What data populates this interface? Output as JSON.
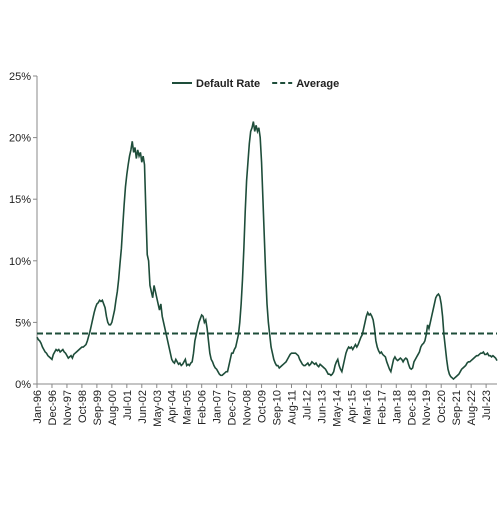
{
  "chart_data": {
    "type": "line",
    "ylim": [
      0,
      25
    ],
    "yticks": [
      {
        "value": 0,
        "label": "0%"
      },
      {
        "value": 5,
        "label": "5%"
      },
      {
        "value": 10,
        "label": "10%"
      },
      {
        "value": 15,
        "label": "15%"
      },
      {
        "value": 20,
        "label": "20%"
      },
      {
        "value": 25,
        "label": "25%"
      }
    ],
    "legend": "top",
    "categories": [
      "Jan-96",
      null,
      null,
      null,
      null,
      null,
      null,
      null,
      null,
      null,
      null,
      "Dec-96",
      null,
      null,
      null,
      null,
      null,
      null,
      null,
      null,
      null,
      null,
      "Nov-97",
      null,
      null,
      null,
      null,
      null,
      null,
      null,
      null,
      null,
      null,
      "Oct-98",
      null,
      null,
      null,
      null,
      null,
      null,
      null,
      null,
      null,
      null,
      "Sep-99",
      null,
      null,
      null,
      null,
      null,
      null,
      null,
      null,
      null,
      null,
      "Aug-00",
      null,
      null,
      null,
      null,
      null,
      null,
      null,
      null,
      null,
      null,
      "Jul-01",
      null,
      null,
      null,
      null,
      null,
      null,
      null,
      null,
      null,
      null,
      "Jun-02",
      null,
      null,
      null,
      null,
      null,
      null,
      null,
      null,
      null,
      null,
      "May-03",
      null,
      null,
      null,
      null,
      null,
      null,
      null,
      null,
      null,
      null,
      "Apr-04",
      null,
      null,
      null,
      null,
      null,
      null,
      null,
      null,
      null,
      null,
      "Mar-05",
      null,
      null,
      null,
      null,
      null,
      null,
      null,
      null,
      null,
      null,
      "Feb-06",
      null,
      null,
      null,
      null,
      null,
      null,
      null,
      null,
      null,
      null,
      "Jan-07",
      null,
      null,
      null,
      null,
      null,
      null,
      null,
      null,
      null,
      null,
      "Dec-07",
      null,
      null,
      null,
      null,
      null,
      null,
      null,
      null,
      null,
      null,
      "Nov-08",
      null,
      null,
      null,
      null,
      null,
      null,
      null,
      null,
      null,
      null,
      "Oct-09",
      null,
      null,
      null,
      null,
      null,
      null,
      null,
      null,
      null,
      null,
      "Sep-10",
      null,
      null,
      null,
      null,
      null,
      null,
      null,
      null,
      null,
      null,
      "Aug-11",
      null,
      null,
      null,
      null,
      null,
      null,
      null,
      null,
      null,
      null,
      "Jul-12",
      null,
      null,
      null,
      null,
      null,
      null,
      null,
      null,
      null,
      null,
      "Jun-13",
      null,
      null,
      null,
      null,
      null,
      null,
      null,
      null,
      null,
      null,
      "May-14",
      null,
      null,
      null,
      null,
      null,
      null,
      null,
      null,
      null,
      null,
      "Apr-15",
      null,
      null,
      null,
      null,
      null,
      null,
      null,
      null,
      null,
      null,
      "Mar-16",
      null,
      null,
      null,
      null,
      null,
      null,
      null,
      null,
      null,
      null,
      "Feb-17",
      null,
      null,
      null,
      null,
      null,
      null,
      null,
      null,
      null,
      null,
      "Jan-18",
      null,
      null,
      null,
      null,
      null,
      null,
      null,
      null,
      null,
      null,
      "Dec-18",
      null,
      null,
      null,
      null,
      null,
      null,
      null,
      null,
      null,
      null,
      "Nov-19",
      null,
      null,
      null,
      null,
      null,
      null,
      null,
      null,
      null,
      null,
      "Oct-20",
      null,
      null,
      null,
      null,
      null,
      null,
      null,
      null,
      null,
      null,
      "Sep-21",
      null,
      null,
      null,
      null,
      null,
      null,
      null,
      null,
      null,
      null,
      "Aug-22",
      null,
      null,
      null,
      null,
      null,
      null,
      null,
      null,
      null,
      null,
      "Jul-23",
      null,
      null,
      null,
      null,
      null,
      null,
      null,
      null
    ],
    "series": [
      {
        "name": "Default Rate",
        "color": "#1e4d3a",
        "values": [
          3.8,
          3.6,
          3.5,
          3.3,
          3.0,
          2.8,
          2.6,
          2.5,
          2.3,
          2.2,
          2.1,
          2.0,
          2.4,
          2.6,
          2.8,
          2.7,
          2.8,
          2.6,
          2.7,
          2.8,
          2.6,
          2.5,
          2.3,
          2.1,
          2.2,
          2.3,
          2.1,
          2.4,
          2.5,
          2.6,
          2.7,
          2.8,
          2.9,
          3.0,
          3.0,
          3.1,
          3.2,
          3.5,
          3.9,
          4.3,
          4.8,
          5.3,
          5.8,
          6.2,
          6.5,
          6.6,
          6.8,
          6.7,
          6.8,
          6.5,
          6.2,
          5.5,
          5.0,
          4.8,
          4.8,
          5.0,
          5.5,
          6.0,
          6.8,
          7.5,
          8.5,
          9.8,
          11.0,
          12.8,
          14.5,
          16.0,
          17.0,
          17.8,
          18.5,
          19.0,
          19.7,
          18.8,
          19.2,
          18.3,
          19.0,
          18.5,
          18.8,
          18.0,
          18.5,
          17.8,
          14.0,
          10.5,
          10.0,
          8.0,
          7.5,
          7.0,
          8.0,
          7.5,
          7.0,
          6.5,
          6.0,
          6.5,
          5.5,
          5.0,
          4.5,
          4.0,
          3.5,
          3.0,
          2.5,
          2.0,
          1.8,
          1.7,
          2.0,
          1.8,
          1.6,
          1.7,
          1.5,
          1.6,
          1.8,
          2.0,
          1.5,
          1.6,
          1.5,
          1.7,
          1.8,
          2.5,
          3.5,
          4.0,
          4.5,
          5.0,
          5.3,
          5.6,
          5.5,
          5.0,
          5.2,
          4.5,
          3.5,
          2.5,
          2.0,
          1.8,
          1.5,
          1.3,
          1.2,
          1.0,
          0.8,
          0.7,
          0.7,
          0.8,
          0.9,
          1.0,
          1.0,
          1.5,
          2.0,
          2.5,
          2.5,
          2.8,
          3.0,
          3.5,
          4.0,
          5.0,
          6.5,
          8.5,
          11.0,
          14.0,
          16.5,
          18.0,
          19.5,
          20.5,
          20.8,
          21.3,
          20.5,
          21.0,
          20.5,
          20.8,
          20.0,
          18.0,
          15.0,
          12.0,
          9.0,
          6.5,
          5.0,
          4.0,
          3.0,
          2.5,
          2.0,
          1.7,
          1.5,
          1.5,
          1.3,
          1.4,
          1.5,
          1.6,
          1.7,
          1.8,
          2.0,
          2.2,
          2.4,
          2.5,
          2.5,
          2.5,
          2.5,
          2.4,
          2.3,
          2.0,
          1.8,
          1.6,
          1.5,
          1.5,
          1.6,
          1.7,
          1.5,
          1.6,
          1.8,
          1.7,
          1.6,
          1.7,
          1.5,
          1.4,
          1.6,
          1.5,
          1.4,
          1.3,
          1.2,
          1.0,
          0.8,
          0.8,
          0.7,
          0.8,
          1.0,
          1.5,
          1.8,
          2.0,
          1.5,
          1.2,
          1.0,
          1.5,
          2.0,
          2.5,
          2.8,
          3.0,
          2.9,
          3.0,
          2.8,
          3.0,
          3.2,
          3.0,
          3.2,
          3.5,
          3.8,
          4.0,
          4.5,
          5.0,
          5.5,
          5.8,
          5.6,
          5.7,
          5.5,
          5.2,
          4.5,
          3.5,
          3.0,
          2.7,
          2.5,
          2.6,
          2.4,
          2.3,
          2.2,
          1.8,
          1.5,
          1.2,
          1.0,
          1.5,
          2.0,
          2.2,
          2.0,
          1.9,
          2.0,
          2.1,
          2.0,
          1.8,
          2.0,
          2.1,
          2.0,
          1.6,
          1.3,
          1.2,
          1.3,
          1.8,
          2.0,
          2.2,
          2.4,
          2.6,
          3.0,
          3.2,
          3.3,
          3.5,
          4.0,
          4.8,
          4.5,
          5.0,
          5.5,
          6.0,
          6.5,
          7.0,
          7.2,
          7.3,
          7.1,
          6.5,
          5.5,
          4.0,
          3.0,
          2.0,
          1.2,
          0.8,
          0.6,
          0.5,
          0.4,
          0.5,
          0.6,
          0.7,
          0.8,
          1.0,
          1.2,
          1.3,
          1.4,
          1.5,
          1.7,
          1.8,
          1.8,
          1.9,
          2.0,
          2.1,
          2.2,
          2.3,
          2.3,
          2.4,
          2.5,
          2.5,
          2.6,
          2.4,
          2.4,
          2.5,
          2.3,
          2.3,
          2.2,
          2.3,
          2.2,
          2.1,
          1.9
        ]
      }
    ],
    "reference_lines": [
      {
        "name": "Average",
        "value": 4.1,
        "color": "#1e4d3a",
        "dashed": true
      }
    ]
  }
}
